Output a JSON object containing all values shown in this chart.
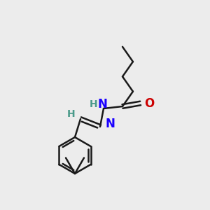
{
  "background_color": "#ececec",
  "bond_color": "#1a1a1a",
  "N_color": "#1a00ff",
  "O_color": "#cc0000",
  "H_color": "#4a9a8a",
  "bond_width": 1.8,
  "font_size_atoms": 12,
  "font_size_H": 10,
  "figsize": [
    3.0,
    3.0
  ],
  "dpi": 100,
  "xlim": [
    0,
    300
  ],
  "ylim": [
    0,
    300
  ]
}
